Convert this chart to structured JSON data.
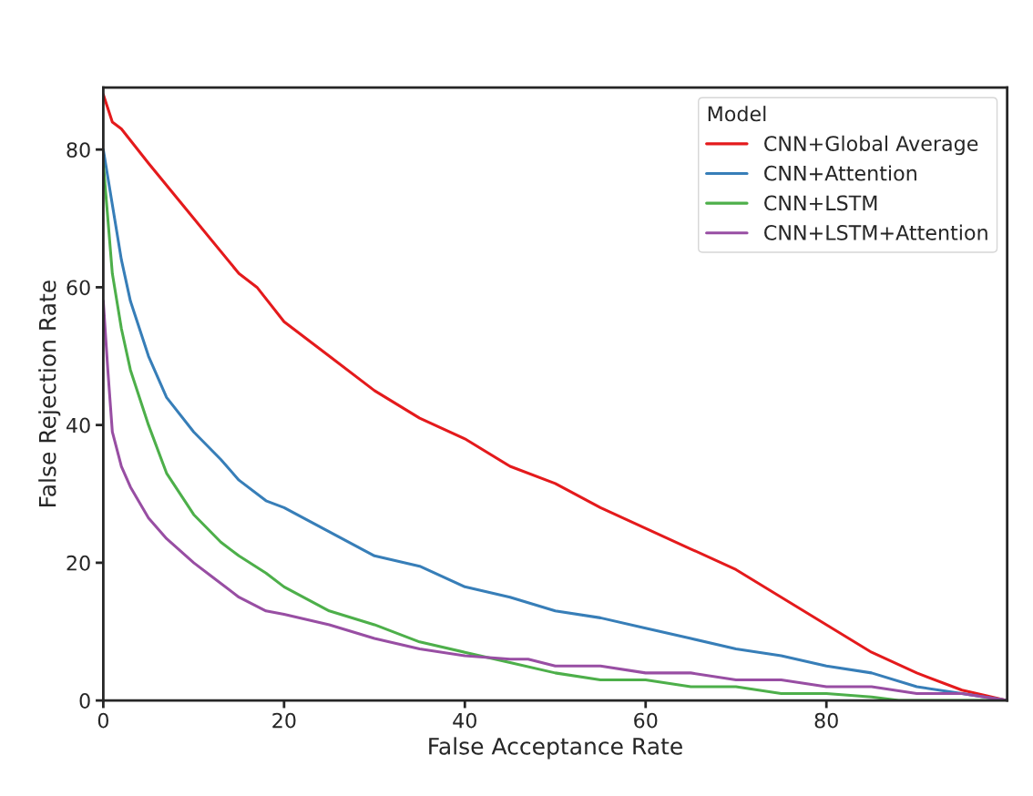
{
  "chart_data": {
    "type": "line",
    "xlabel": "False Acceptance Rate",
    "ylabel": "False Rejection Rate",
    "legend_title": "Model",
    "legend": "top right",
    "grid": false,
    "xlim": [
      0,
      100
    ],
    "ylim": [
      0,
      89
    ],
    "xticks": [
      0,
      20,
      40,
      60,
      80
    ],
    "yticks": [
      0,
      20,
      40,
      60,
      80
    ],
    "series": [
      {
        "name": "CNN+Global Average",
        "color": "#e41a1c",
        "x": [
          0,
          1,
          2,
          5,
          10,
          15,
          17,
          20,
          25,
          30,
          35,
          40,
          45,
          50,
          55,
          60,
          65,
          70,
          75,
          80,
          85,
          90,
          95,
          100
        ],
        "values": [
          88,
          84,
          83,
          78,
          70,
          62,
          60,
          55,
          50,
          45,
          41,
          38,
          34,
          31.5,
          28,
          25,
          22,
          19,
          15,
          11,
          7,
          4,
          1.5,
          0
        ]
      },
      {
        "name": "CNN+Attention",
        "color": "#377eb8",
        "x": [
          0,
          1,
          2,
          3,
          5,
          7,
          10,
          13,
          15,
          18,
          20,
          25,
          30,
          35,
          40,
          45,
          50,
          55,
          60,
          65,
          70,
          75,
          80,
          85,
          90,
          95,
          100
        ],
        "values": [
          80,
          72,
          64,
          58,
          50,
          44,
          39,
          35,
          32,
          29,
          28,
          24.5,
          21,
          19.5,
          16.5,
          15,
          13,
          12,
          10.5,
          9,
          7.5,
          6.5,
          5,
          4,
          2,
          1,
          0
        ]
      },
      {
        "name": "CNN+LSTM",
        "color": "#4daf4a",
        "x": [
          0,
          1,
          2,
          3,
          5,
          7,
          10,
          13,
          15,
          18,
          20,
          25,
          30,
          35,
          40,
          45,
          50,
          55,
          60,
          65,
          70,
          75,
          80,
          85,
          88,
          100
        ],
        "values": [
          78,
          62,
          54,
          48,
          40,
          33,
          27,
          23,
          21,
          18.5,
          16.5,
          13,
          11,
          8.5,
          7,
          5.5,
          4,
          3,
          3,
          2,
          2,
          1,
          1,
          0.5,
          0,
          0
        ]
      },
      {
        "name": "CNN+LSTM+Attention",
        "color": "#984ea3",
        "x": [
          0,
          0.5,
          1,
          2,
          3,
          5,
          7,
          10,
          12,
          15,
          18,
          20,
          25,
          30,
          35,
          40,
          45,
          47,
          50,
          55,
          60,
          65,
          70,
          75,
          80,
          85,
          90,
          95,
          100
        ],
        "values": [
          58,
          48,
          39,
          34,
          31,
          26.5,
          23.5,
          20,
          18,
          15,
          13,
          12.5,
          11,
          9,
          7.5,
          6.5,
          6,
          6,
          5,
          5,
          4,
          4,
          3,
          3,
          2,
          2,
          1,
          1,
          0
        ]
      }
    ]
  }
}
